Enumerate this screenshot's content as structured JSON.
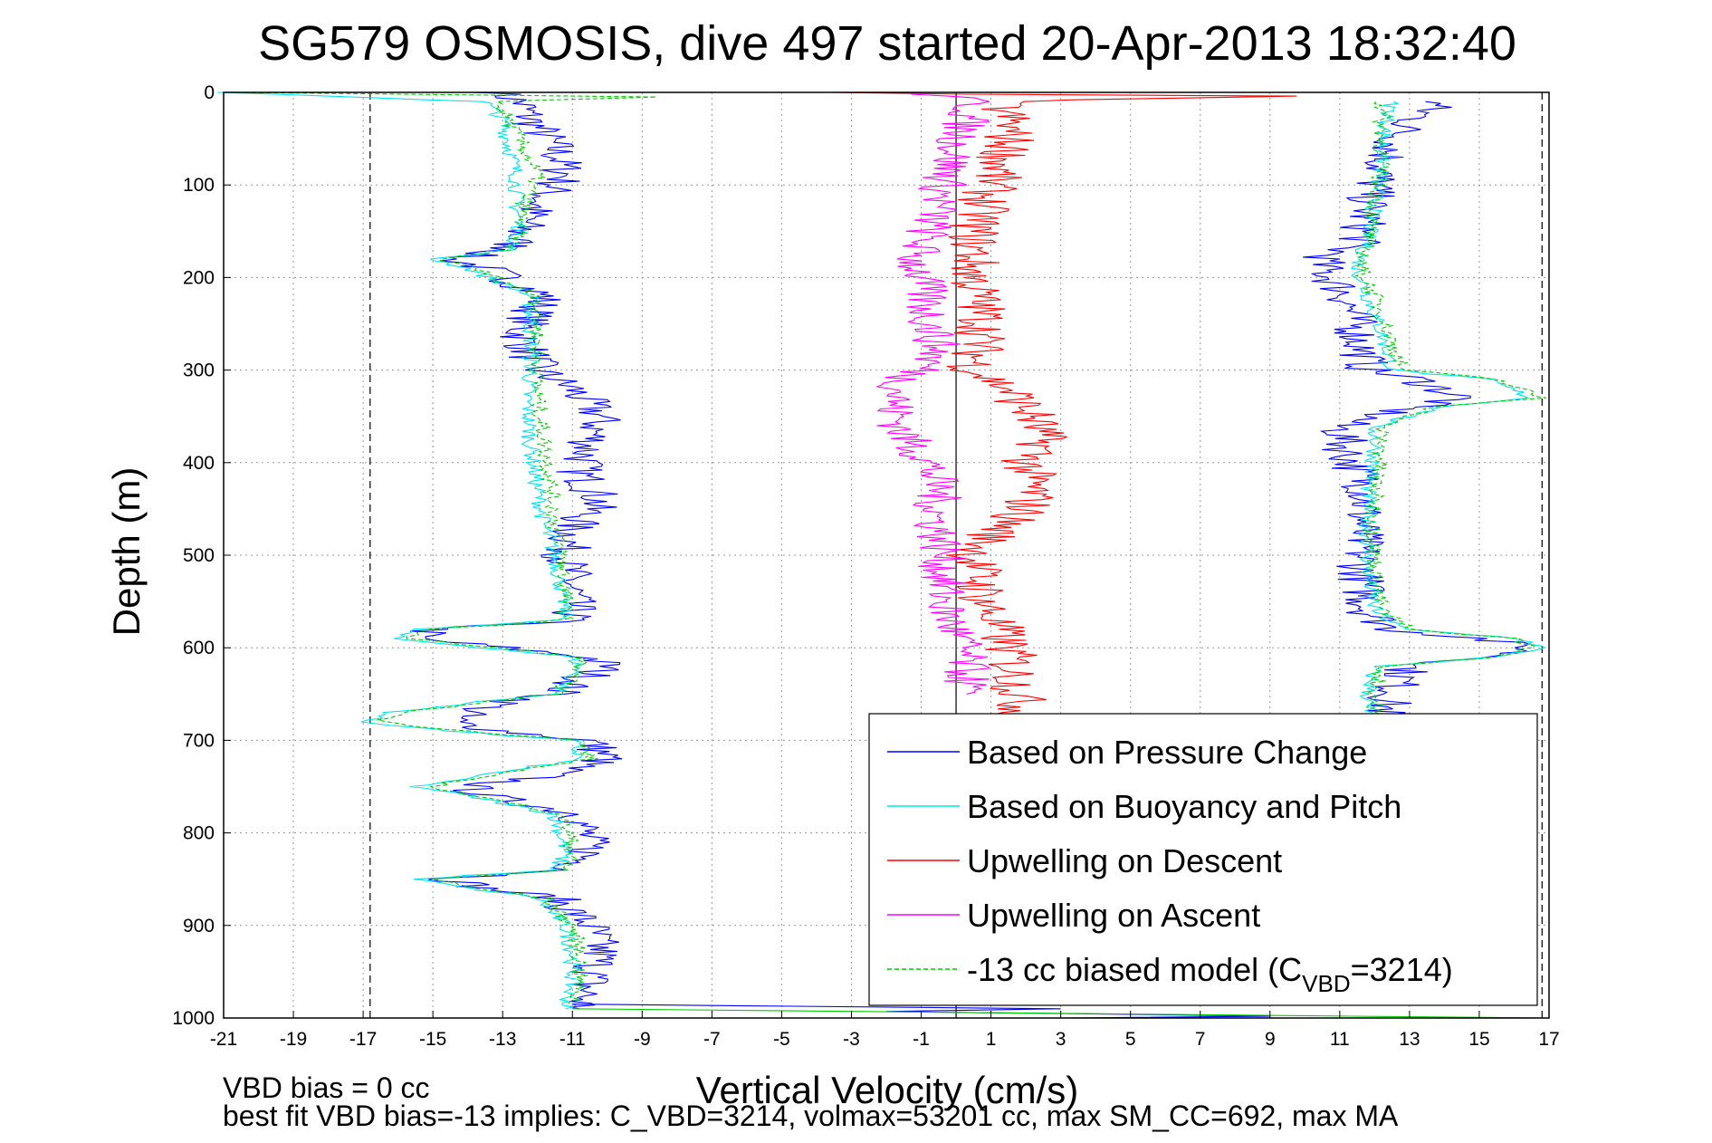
{
  "chart_data": {
    "type": "line",
    "title": "SG579 OSMOSIS, dive 497 started 20-Apr-2013 18:32:40",
    "xlabel": "Vertical Velocity (cm/s)",
    "ylabel": "Depth (m)",
    "xlim": [
      -21,
      17
    ],
    "ylim": [
      0,
      1000
    ],
    "y_reversed": true,
    "grid": true,
    "xticks": [
      "-21",
      "-19",
      "-17",
      "-15",
      "-13",
      "-11",
      "-9",
      "-7",
      "-5",
      "-3",
      "-1",
      "1",
      "3",
      "5",
      "7",
      "9",
      "11",
      "13",
      "15",
      "17"
    ],
    "yticks": [
      "0",
      "100",
      "200",
      "300",
      "400",
      "500",
      "600",
      "700",
      "800",
      "900",
      "1000"
    ],
    "reference_lines": [
      {
        "x": -16.8,
        "style": "dashed",
        "color": "#000000"
      },
      {
        "x": 16.8,
        "style": "dashed",
        "color": "#000000"
      },
      {
        "x": 0,
        "style": "solid",
        "color": "#000000"
      }
    ],
    "legend_position": "lower-right",
    "legend": [
      {
        "label": "Based on Pressure Change",
        "color": "#0000ff",
        "dash": "solid"
      },
      {
        "label": "Based on Buoyancy and Pitch",
        "color": "#00e5ee",
        "dash": "solid"
      },
      {
        "label": "Upwelling on Descent",
        "color": "#ff0000",
        "dash": "solid"
      },
      {
        "label": "Upwelling on Ascent",
        "color": "#ff00ff",
        "dash": "solid"
      },
      {
        "label_prefix": "-13 cc biased model (C",
        "label_sub": "VBD",
        "label_suffix": "=3214)",
        "color": "#00cc00",
        "dash": "dashed"
      }
    ],
    "series": [
      {
        "name": "Based on Pressure Change",
        "color": "#0000ff",
        "segments": [
          {
            "depth": [
              0,
              10,
              30,
              60,
              90,
              120,
              150,
              170,
              180,
              190,
              220,
              260,
              300,
              320,
              350,
              380,
              410,
              440,
              470,
              500,
              540,
              570,
              580,
              590,
              600,
              610,
              620,
              640,
              650,
              660,
              670,
              680,
              690,
              700,
              720,
              740,
              750,
              760,
              780,
              820,
              840,
              850,
              860,
              870,
              900,
              930,
              960,
              990
            ],
            "v": [
              -13.2,
              -12.5,
              -12.2,
              -11.5,
              -11.2,
              -12.0,
              -12.5,
              -12.8,
              -14.5,
              -13.5,
              -11.8,
              -12.5,
              -12.0,
              -11.0,
              -10.2,
              -10.5,
              -10.8,
              -10.2,
              -11.0,
              -11.2,
              -11.0,
              -11.0,
              -15.0,
              -15.5,
              -13.0,
              -10.5,
              -10.0,
              -11.0,
              -11.5,
              -13.0,
              -14.0,
              -14.5,
              -13.0,
              -10.5,
              -10.0,
              -12.0,
              -14.0,
              -13.5,
              -10.8,
              -10.5,
              -11.0,
              -14.5,
              -13.5,
              -11.5,
              -10.5,
              -10.2,
              -10.5,
              -10.8
            ]
          },
          {
            "depth": [
              10,
              40,
              80,
              120,
              160,
              180,
              190,
              220,
              260,
              300,
              310,
              330,
              340,
              360,
              390,
              430,
              470,
              520,
              560,
              580,
              590,
              600,
              610,
              620,
              650,
              680
            ],
            "v": [
              13.8,
              12.8,
              12.2,
              11.8,
              11.6,
              10.5,
              10.5,
              11.2,
              11.5,
              11.8,
              13.2,
              14.5,
              13.0,
              11.0,
              11.2,
              11.8,
              11.6,
              11.6,
              11.8,
              12.5,
              15.0,
              16.5,
              15.5,
              13.0,
              12.5,
              12.2
            ]
          }
        ]
      },
      {
        "name": "Based on Buoyancy and Pitch",
        "color": "#00e5ee",
        "segments": [
          {
            "depth": [
              0,
              10,
              30,
              60,
              90,
              120,
              150,
              170,
              180,
              190,
              220,
              260,
              300,
              330,
              380,
              430,
              470,
              500,
              540,
              570,
              580,
              590,
              600,
              610,
              620,
              640,
              650,
              660,
              670,
              680,
              690,
              700,
              720,
              740,
              750,
              760,
              780,
              820,
              840,
              850,
              860,
              870,
              900,
              930,
              960,
              990
            ],
            "v": [
              -21,
              -13.5,
              -13.0,
              -12.8,
              -12.6,
              -12.6,
              -12.5,
              -12.8,
              -15.0,
              -14.0,
              -12.2,
              -12.2,
              -12.2,
              -12.3,
              -12.2,
              -12.0,
              -11.8,
              -11.5,
              -11.3,
              -11.2,
              -15.5,
              -16.2,
              -13.5,
              -11.0,
              -10.8,
              -11.2,
              -11.5,
              -14.0,
              -16.2,
              -17.0,
              -14.5,
              -11.0,
              -10.8,
              -14.0,
              -15.5,
              -14.0,
              -11.5,
              -11.2,
              -11.5,
              -15.5,
              -14.0,
              -12.0,
              -11.2,
              -11.0,
              -11.0,
              -11.2
            ]
          },
          {
            "depth": [
              10,
              40,
              80,
              120,
              160,
              190,
              220,
              260,
              300,
              310,
              330,
              340,
              360,
              390,
              430,
              470,
              520,
              560,
              580,
              590,
              600,
              610,
              620,
              650,
              680
            ],
            "v": [
              12.5,
              12.3,
              12.2,
              12.0,
              11.8,
              11.5,
              11.8,
              12.2,
              12.5,
              15.2,
              16.5,
              14.0,
              12.0,
              12.0,
              11.8,
              11.8,
              11.8,
              12.0,
              12.8,
              16.2,
              16.8,
              15.5,
              12.0,
              11.8,
              11.8
            ]
          }
        ]
      },
      {
        "name": "Upwelling on Descent",
        "color": "#ff0000",
        "segments": [
          {
            "depth": [
              0,
              2,
              4,
              10,
              30,
              60,
              100,
              150,
              200,
              250,
              300,
              320,
              350,
              380,
              400,
              430,
              450,
              480,
              500,
              550,
              600,
              650,
              700
            ],
            "v": [
              -3,
              1,
              9,
              1.2,
              1.5,
              1.5,
              1.0,
              0.5,
              0.5,
              0.8,
              0.5,
              1.5,
              2.2,
              2.5,
              2.0,
              2.2,
              2.0,
              1.0,
              0.5,
              0.8,
              1.5,
              1.8,
              2.0
            ]
          }
        ]
      },
      {
        "name": "Upwelling on Ascent",
        "color": "#ff00ff",
        "segments": [
          {
            "depth": [
              0,
              10,
              40,
              80,
              120,
              150,
              180,
              200,
              240,
              280,
              300,
              310,
              340,
              370,
              400,
              430,
              460,
              490,
              520,
              560,
              600,
              630,
              650
            ],
            "v": [
              -1,
              0.5,
              0.2,
              -0.2,
              -0.5,
              -0.8,
              -1.2,
              -1.0,
              -0.8,
              -0.5,
              -1.0,
              -1.5,
              -1.8,
              -1.5,
              -0.8,
              -0.5,
              -0.6,
              -0.4,
              -0.4,
              -0.3,
              0.2,
              0.3,
              0.3
            ]
          }
        ]
      },
      {
        "name": "-13 cc biased model (C_VBD=3214)",
        "color": "#00cc00",
        "dash": "dashed",
        "segments": [
          {
            "depth": [
              0,
              5,
              10,
              30,
              60,
              90,
              120,
              150,
              170,
              180,
              190,
              220,
              260,
              300,
              330,
              380,
              430,
              470,
              500,
              540,
              570,
              580,
              590,
              600,
              610,
              620,
              640,
              650,
              660,
              670,
              680,
              690,
              700,
              720,
              740,
              750,
              760,
              780,
              820,
              840,
              850,
              860,
              870,
              900,
              930,
              960,
              990
            ],
            "v": [
              -21,
              -8.5,
              -13.2,
              -12.8,
              -12.4,
              -12.0,
              -12.4,
              -12.5,
              -12.8,
              -14.8,
              -13.8,
              -12.0,
              -12.0,
              -12.0,
              -12.0,
              -11.8,
              -11.6,
              -11.5,
              -11.3,
              -11.2,
              -11.2,
              -15.0,
              -15.8,
              -13.2,
              -10.8,
              -10.8,
              -11.2,
              -11.5,
              -13.8,
              -15.8,
              -16.5,
              -14.0,
              -10.8,
              -10.5,
              -13.8,
              -15.0,
              -13.8,
              -11.2,
              -11.0,
              -11.2,
              -15.0,
              -13.8,
              -11.8,
              -11.0,
              -10.8,
              -10.8,
              -11.0
            ]
          },
          {
            "depth": [
              10,
              40,
              80,
              120,
              160,
              190,
              220,
              260,
              300,
              310,
              330,
              340,
              360,
              390,
              430,
              470,
              520,
              560,
              580,
              590,
              600,
              610,
              620,
              650,
              680
            ],
            "v": [
              12.2,
              12.2,
              12.2,
              12.0,
              11.8,
              11.6,
              12.0,
              12.4,
              12.8,
              15.5,
              16.8,
              13.8,
              12.2,
              12.2,
              12.0,
              12.0,
              12.0,
              12.2,
              13.0,
              16.0,
              16.5,
              15.5,
              12.2,
              12.0,
              12.0
            ]
          }
        ]
      }
    ],
    "bottom_spike": {
      "depth": [
        985,
        990,
        993,
        996,
        998,
        1000
      ],
      "v": [
        -11,
        3,
        -2,
        5,
        9,
        3
      ]
    }
  },
  "notes": {
    "line1": "VBD bias = 0 cc",
    "line2": "best fit VBD bias=-13 implies: C_VBD=3214, volmax=53201 cc, max SM_CC=692, max MA"
  }
}
